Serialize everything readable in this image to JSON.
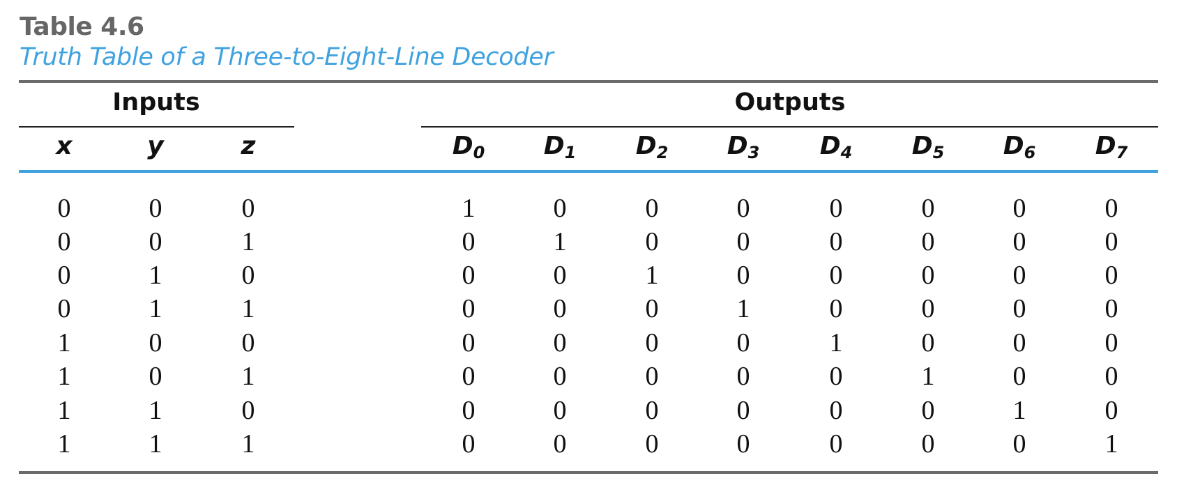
{
  "caption": {
    "label": "Table 4.6",
    "title": "Truth Table of a Three-to-Eight-Line Decoder"
  },
  "groups": {
    "inputs": "Inputs",
    "outputs": "Outputs"
  },
  "columns": [
    {
      "name": "x",
      "sub": ""
    },
    {
      "name": "y",
      "sub": ""
    },
    {
      "name": "z",
      "sub": ""
    },
    {
      "name": "D",
      "sub": "0"
    },
    {
      "name": "D",
      "sub": "1"
    },
    {
      "name": "D",
      "sub": "2"
    },
    {
      "name": "D",
      "sub": "3"
    },
    {
      "name": "D",
      "sub": "4"
    },
    {
      "name": "D",
      "sub": "5"
    },
    {
      "name": "D",
      "sub": "6"
    },
    {
      "name": "D",
      "sub": "7"
    }
  ],
  "rows": [
    [
      "0",
      "0",
      "0",
      "1",
      "0",
      "0",
      "0",
      "0",
      "0",
      "0",
      "0"
    ],
    [
      "0",
      "0",
      "1",
      "0",
      "1",
      "0",
      "0",
      "0",
      "0",
      "0",
      "0"
    ],
    [
      "0",
      "1",
      "0",
      "0",
      "0",
      "1",
      "0",
      "0",
      "0",
      "0",
      "0"
    ],
    [
      "0",
      "1",
      "1",
      "0",
      "0",
      "0",
      "1",
      "0",
      "0",
      "0",
      "0"
    ],
    [
      "1",
      "0",
      "0",
      "0",
      "0",
      "0",
      "0",
      "1",
      "0",
      "0",
      "0"
    ],
    [
      "1",
      "0",
      "1",
      "0",
      "0",
      "0",
      "0",
      "0",
      "1",
      "0",
      "0"
    ],
    [
      "1",
      "1",
      "0",
      "0",
      "0",
      "0",
      "0",
      "0",
      "0",
      "1",
      "0"
    ],
    [
      "1",
      "1",
      "1",
      "0",
      "0",
      "0",
      "0",
      "0",
      "0",
      "0",
      "1"
    ]
  ],
  "colors": {
    "accent": "#3fa2e0",
    "label": "#666666",
    "text": "#111111"
  }
}
